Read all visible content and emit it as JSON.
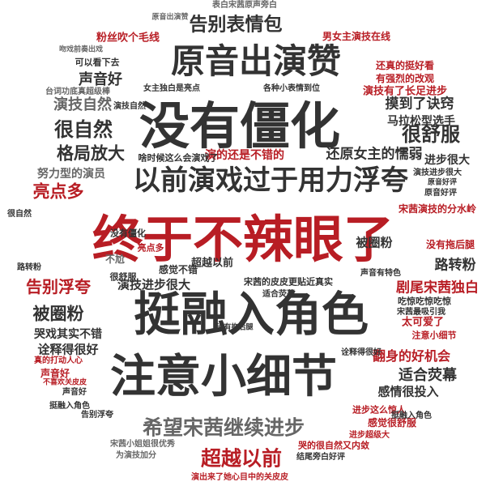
{
  "colors": {
    "dark": "#333333",
    "red": "#b81d24",
    "gray": "#666666",
    "light": "#999999"
  },
  "words": [
    {
      "text": "终于不辣眼了",
      "color": "red"
    },
    {
      "text": "没有僵化",
      "color": "dark"
    },
    {
      "text": "挺融入角色",
      "color": "dark"
    },
    {
      "text": "注意小细节",
      "color": "dark"
    },
    {
      "text": "原音出演赞",
      "color": "dark"
    },
    {
      "text": "以前演戏过于用力浮夸",
      "color": "dark"
    },
    {
      "text": "希望宋茜继续进步",
      "color": "gray"
    },
    {
      "text": "超越以前",
      "color": "red"
    },
    {
      "text": "告别表情包",
      "color": "dark"
    },
    {
      "text": "很舒服",
      "color": "dark"
    },
    {
      "text": "很自然",
      "color": "dark"
    },
    {
      "text": "格局放大",
      "color": "dark"
    },
    {
      "text": "演技自然",
      "color": "gray"
    },
    {
      "text": "亮点多",
      "color": "red"
    },
    {
      "text": "告别浮夸",
      "color": "red"
    },
    {
      "text": "被圈粉",
      "color": "dark"
    },
    {
      "text": "声音好",
      "color": "dark"
    },
    {
      "text": "摸到了诀窍",
      "color": "dark"
    },
    {
      "text": "马拉松型选手",
      "color": "dark"
    },
    {
      "text": "还原女主的懦弱",
      "color": "dark"
    },
    {
      "text": "进步很大",
      "color": "dark"
    },
    {
      "text": "路转粉",
      "color": "dark"
    },
    {
      "text": "剧尾宋茜独白",
      "color": "red"
    },
    {
      "text": "适合荧幕",
      "color": "dark"
    },
    {
      "text": "感情很投入",
      "color": "dark"
    },
    {
      "text": "翻身的好机会",
      "color": "red"
    },
    {
      "text": "演技进步很大",
      "color": "dark"
    },
    {
      "text": "诠释得很好",
      "color": "dark"
    },
    {
      "text": "哭戏其实不错",
      "color": "dark"
    },
    {
      "text": "超越以前",
      "color": "dark"
    },
    {
      "text": "努力型的演员",
      "color": "gray"
    },
    {
      "text": "演的还是不错的",
      "color": "red"
    },
    {
      "text": "粉丝吹个毛线",
      "color": "red"
    },
    {
      "text": "男女主演技在线",
      "color": "red"
    },
    {
      "text": "演技有了长足进步",
      "color": "red"
    },
    {
      "text": "有强烈的改观",
      "color": "red"
    },
    {
      "text": "还真的挺好看",
      "color": "red"
    },
    {
      "text": "宋茜演技的分水岭",
      "color": "red"
    },
    {
      "text": "没有拖后腿",
      "color": "red"
    },
    {
      "text": "太可爱了",
      "color": "red"
    },
    {
      "text": "注意小细节",
      "color": "red"
    },
    {
      "text": "声音好",
      "color": "red"
    },
    {
      "text": "不尬",
      "color": "gray"
    },
    {
      "text": "原音好评",
      "color": "dark"
    },
    {
      "text": "感觉不错",
      "color": "dark"
    },
    {
      "text": "真的打动人心",
      "color": "red"
    },
    {
      "text": "感觉很舒服",
      "color": "red"
    },
    {
      "text": "进步这么惊人",
      "color": "red"
    },
    {
      "text": "哭的很自然又内敛",
      "color": "red"
    },
    {
      "text": "结尾旁白好评",
      "color": "dark"
    },
    {
      "text": "演出来了她心目中的关皮皮",
      "color": "red"
    },
    {
      "text": "吃惊吃惊吃惊",
      "color": "dark"
    },
    {
      "text": "宋茜最吸引我",
      "color": "dark"
    },
    {
      "text": "宋茜的皮皮更贴近真实",
      "color": "dark"
    },
    {
      "text": "可以看下去",
      "color": "dark"
    },
    {
      "text": "吻戏前奏出戏",
      "color": "gray"
    },
    {
      "text": "台词功底真超级棒",
      "color": "gray"
    },
    {
      "text": "没有僵化",
      "color": "dark"
    },
    {
      "text": "很舒服",
      "color": "dark"
    },
    {
      "text": "宋茜小姐姐很优秀",
      "color": "gray"
    },
    {
      "text": "为演技加分",
      "color": "gray"
    },
    {
      "text": "演技进步很大",
      "color": "dark"
    },
    {
      "text": "啥时候这么会演戏了",
      "color": "dark"
    },
    {
      "text": "进步超级大",
      "color": "red"
    },
    {
      "text": "原音好评",
      "color": "dark"
    },
    {
      "text": "被圈粉",
      "color": "dark"
    },
    {
      "text": "挺融入角色",
      "color": "dark"
    },
    {
      "text": "告别浮夸",
      "color": "dark"
    },
    {
      "text": "表白宋茜原声旁白",
      "color": "gray"
    },
    {
      "text": "原音出演赞",
      "color": "gray"
    },
    {
      "text": "诠释得很好",
      "color": "dark"
    },
    {
      "text": "适合荧幕",
      "color": "dark"
    },
    {
      "text": "亮点多",
      "color": "red"
    },
    {
      "text": "路转粉",
      "color": "dark"
    },
    {
      "text": "声音好",
      "color": "dark"
    },
    {
      "text": "不喜欢关皮皮",
      "color": "red"
    },
    {
      "text": "挺融入角色",
      "color": "dark"
    },
    {
      "text": "很自然",
      "color": "dark"
    },
    {
      "text": "声音有特色",
      "color": "dark"
    },
    {
      "text": "女主独白是亮点",
      "color": "dark"
    },
    {
      "text": "各种小表情到位",
      "color": "dark"
    },
    {
      "text": "没有拖后腿",
      "color": "dark"
    },
    {
      "text": "演技自然",
      "color": "dark"
    }
  ]
}
